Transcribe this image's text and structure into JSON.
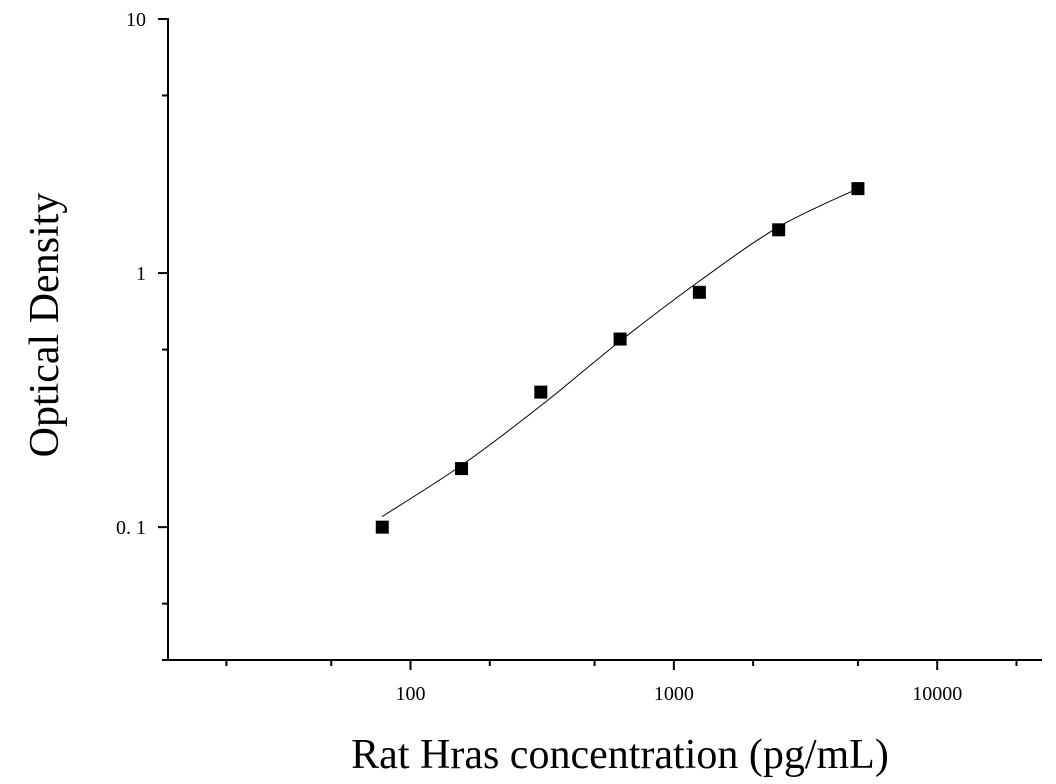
{
  "chart_data": {
    "type": "scatter",
    "title": "",
    "xlabel": "Rat Hras concentration (pg/mL)",
    "ylabel": "Optical Density",
    "xscale": "log",
    "yscale": "log",
    "xlim": [
      12,
      25000
    ],
    "ylim": [
      0.03,
      10
    ],
    "grid": false,
    "legend": "none",
    "x_ticks": [
      {
        "value": 100,
        "label": "100"
      },
      {
        "value": 1000,
        "label": "1000"
      },
      {
        "value": 10000,
        "label": "10000"
      }
    ],
    "y_ticks": [
      {
        "value": 0.1,
        "label": "0. 1"
      },
      {
        "value": 1,
        "label": "1"
      },
      {
        "value": 10,
        "label": "10"
      }
    ],
    "series": [
      {
        "marker": "square",
        "x": [
          78.125,
          156.25,
          312.5,
          625,
          1250,
          2500,
          5000
        ],
        "y": [
          0.1,
          0.17,
          0.34,
          0.55,
          0.84,
          1.48,
          2.15
        ]
      }
    ],
    "fit_curve": {
      "x": [
        78,
        156,
        312,
        625,
        1250,
        2500,
        5000
      ],
      "y": [
        0.11,
        0.175,
        0.3,
        0.54,
        0.93,
        1.52,
        2.15
      ]
    },
    "colors": {
      "marker": "#000000",
      "axis": "#000000",
      "curve": "#000000"
    }
  }
}
